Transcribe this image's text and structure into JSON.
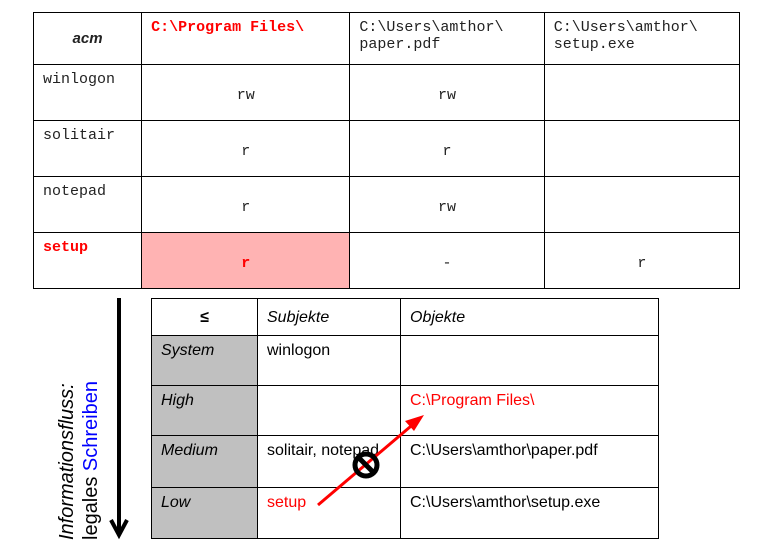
{
  "acm": {
    "corner": "acm",
    "headers": [
      "C:\\Program Files\\",
      "C:\\Users\\amthor\\ paper.pdf",
      "C:\\Users\\amthor\\ setup.exe"
    ],
    "rows": [
      {
        "subject": "winlogon",
        "cells": [
          "rw",
          "rw",
          ""
        ]
      },
      {
        "subject": "solitair",
        "cells": [
          "r",
          "r",
          ""
        ]
      },
      {
        "subject": "notepad",
        "cells": [
          "r",
          "rw",
          ""
        ]
      },
      {
        "subject": "setup",
        "cells": [
          "r",
          "-",
          "r"
        ]
      }
    ]
  },
  "levels": {
    "corner": "≤",
    "headers": [
      "Subjekte",
      "Objekte"
    ],
    "rows": [
      {
        "level": "System",
        "subjects": "winlogon",
        "objects": ""
      },
      {
        "level": "High",
        "subjects": "",
        "objects": "C:\\Program Files\\"
      },
      {
        "level": "Medium",
        "subjects": "solitair, notepad",
        "objects": "C:\\Users\\amthor\\paper.pdf"
      },
      {
        "level": "Low",
        "subjects": "setup",
        "objects": "C:\\Users\\amthor\\setup.exe"
      }
    ]
  },
  "side": {
    "line1": "Informationsfluss:",
    "line2a": "legales ",
    "line2b": "Schreiben"
  },
  "colors": {
    "highlight": "#ffb3b3",
    "red": "#ff0000",
    "blue": "#0000ff"
  }
}
